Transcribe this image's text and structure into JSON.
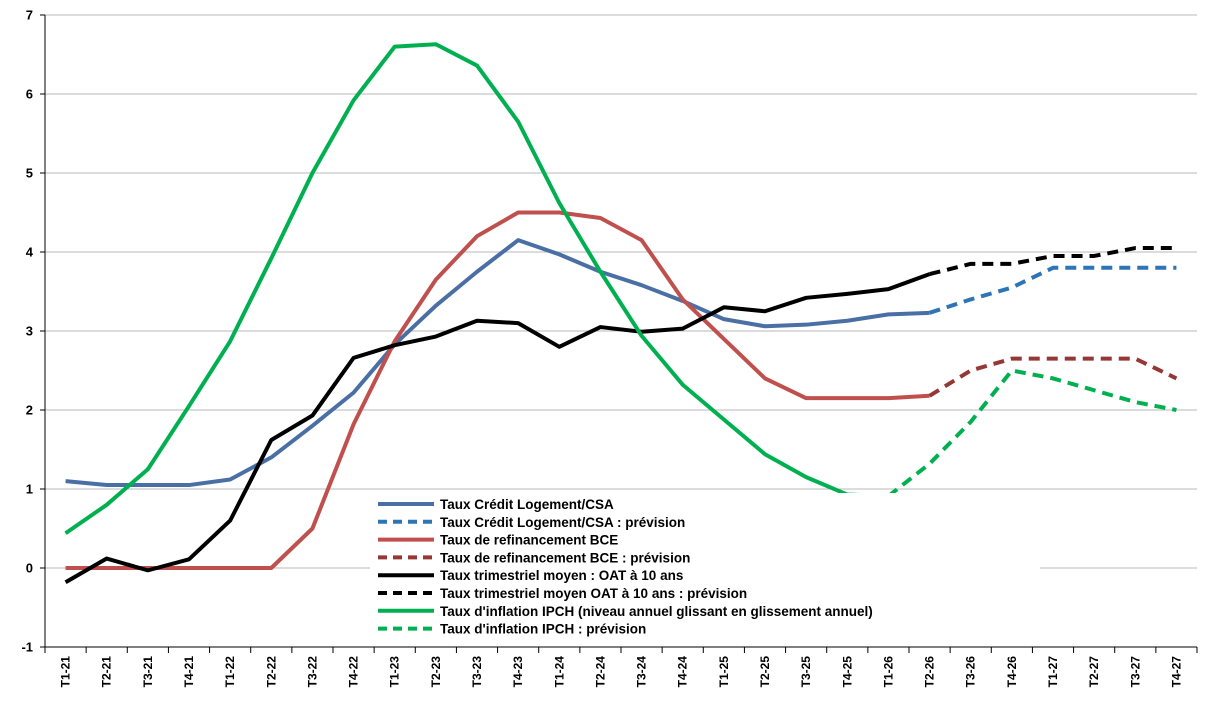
{
  "chart_data": {
    "type": "line",
    "title": "",
    "xlabel": "",
    "ylabel": "",
    "ylim": [
      -1,
      7
    ],
    "yticks": [
      -1,
      0,
      1,
      2,
      3,
      4,
      5,
      6,
      7
    ],
    "grid": "horizontal",
    "legend_position": "inside-bottom-center",
    "categories": [
      "T1-21",
      "T2-21",
      "T3-21",
      "T4-21",
      "T1-22",
      "T2-22",
      "T3-22",
      "T4-22",
      "T1-23",
      "T2-23",
      "T3-23",
      "T4-23",
      "T1-24",
      "T2-24",
      "T3-24",
      "T4-24",
      "T1-25",
      "T2-25",
      "T3-25",
      "T4-25",
      "T1-26",
      "T2-26",
      "T3-26",
      "T4-26",
      "T1-27",
      "T2-27",
      "T3-27",
      "T4-27"
    ],
    "series": [
      {
        "name": "Taux Crédit Logement/CSA",
        "color": "#4a6fa5",
        "dash": "solid",
        "values": [
          1.1,
          1.05,
          1.05,
          1.05,
          1.12,
          1.4,
          1.8,
          2.22,
          2.83,
          3.32,
          3.75,
          4.15,
          3.97,
          3.75,
          3.58,
          3.38,
          3.15,
          3.06,
          3.08,
          3.13,
          3.21,
          3.23,
          null,
          null,
          null,
          null,
          null,
          null
        ]
      },
      {
        "name": "Taux Crédit Logement/CSA : prévision",
        "color": "#2e75b6",
        "dash": "dashed",
        "values": [
          null,
          null,
          null,
          null,
          null,
          null,
          null,
          null,
          null,
          null,
          null,
          null,
          null,
          null,
          null,
          null,
          null,
          null,
          null,
          null,
          null,
          3.23,
          3.4,
          3.55,
          3.8,
          3.8,
          3.8,
          3.8
        ]
      },
      {
        "name": "Taux de refinancement BCE",
        "color": "#c0504d",
        "dash": "solid",
        "values": [
          0,
          0,
          0,
          0,
          0,
          0,
          0.5,
          1.82,
          2.87,
          3.65,
          4.2,
          4.5,
          4.5,
          4.43,
          4.15,
          3.4,
          2.9,
          2.4,
          2.15,
          2.15,
          2.15,
          2.18,
          null,
          null,
          null,
          null,
          null,
          null
        ]
      },
      {
        "name": "Taux de refinancement BCE : prévision",
        "color": "#953735",
        "dash": "dashed",
        "values": [
          null,
          null,
          null,
          null,
          null,
          null,
          null,
          null,
          null,
          null,
          null,
          null,
          null,
          null,
          null,
          null,
          null,
          null,
          null,
          null,
          null,
          2.18,
          2.5,
          2.65,
          2.65,
          2.65,
          2.65,
          2.4
        ]
      },
      {
        "name": "Taux trimestriel moyen : OAT à 10 ans",
        "color": "#000000",
        "dash": "solid",
        "values": [
          -0.18,
          0.12,
          -0.03,
          0.11,
          0.6,
          1.62,
          1.93,
          2.66,
          2.82,
          2.93,
          3.13,
          3.1,
          2.8,
          3.05,
          2.99,
          3.03,
          3.3,
          3.25,
          3.42,
          3.47,
          3.53,
          3.72,
          null,
          null,
          null,
          null,
          null,
          null
        ]
      },
      {
        "name": "Taux trimestriel moyen OAT à 10 ans : prévision",
        "color": "#000000",
        "dash": "dashed",
        "values": [
          null,
          null,
          null,
          null,
          null,
          null,
          null,
          null,
          null,
          null,
          null,
          null,
          null,
          null,
          null,
          null,
          null,
          null,
          null,
          null,
          null,
          3.72,
          3.85,
          3.85,
          3.95,
          3.95,
          4.05,
          4.05
        ]
      },
      {
        "name": "Taux d'inflation IPCH (niveau annuel glissant en glissement annuel)",
        "color": "#00b050",
        "dash": "solid",
        "values": [
          0.44,
          0.8,
          1.25,
          2.05,
          2.87,
          3.92,
          5.0,
          5.92,
          6.6,
          6.63,
          6.36,
          5.65,
          4.62,
          3.75,
          2.94,
          2.32,
          1.88,
          1.44,
          1.15,
          0.93,
          0.91,
          null,
          null,
          null,
          null,
          null,
          null,
          null
        ]
      },
      {
        "name": "Taux d'inflation IPCH : prévision",
        "color": "#00b050",
        "dash": "dashed",
        "values": [
          null,
          null,
          null,
          null,
          null,
          null,
          null,
          null,
          null,
          null,
          null,
          null,
          null,
          null,
          null,
          null,
          null,
          null,
          null,
          null,
          0.91,
          1.32,
          1.85,
          2.5,
          2.4,
          2.25,
          2.1,
          2.0
        ]
      }
    ]
  }
}
